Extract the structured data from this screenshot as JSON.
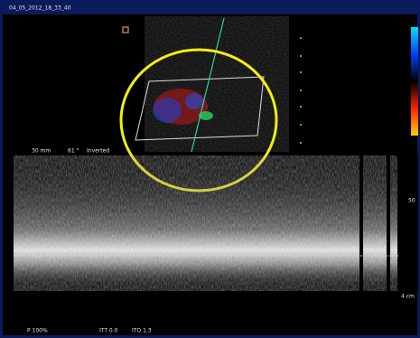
{
  "header": {
    "title": "04_05_2012_18_33_40"
  },
  "image_labels": {
    "depth": "30 mm",
    "angle": "61 °",
    "mode": "Inverted"
  },
  "scale_labels": {
    "velocity": "50",
    "unit": "4 cm"
  },
  "footer": {
    "power": "P 100%",
    "itt": "ITT 0.0",
    "ito": "ITO 1.3"
  }
}
